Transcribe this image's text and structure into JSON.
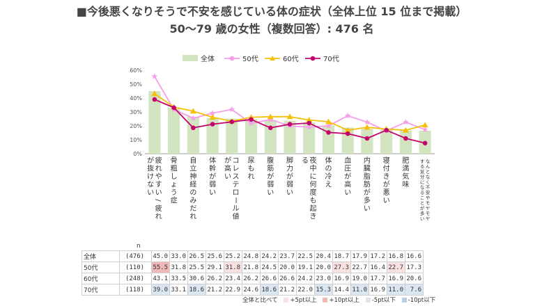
{
  "title_line1": "■今後悪くなりそうで不安を感じている体の症状（全体上位 15 位まで掲載）",
  "title_line2": "50〜79 歳の女性（複数回答）: 476 名",
  "colors": {
    "bar": "#d3e4c1",
    "s50": "#f59ee9",
    "s60": "#f5c00b",
    "s70": "#c3066d"
  },
  "chart_data": {
    "type": "bar",
    "ylim": [
      0,
      60
    ],
    "yticks": [
      "0%",
      "10%",
      "20%",
      "30%",
      "40%",
      "50%",
      "60%"
    ],
    "legend_position": "top",
    "categories": [
      "疲れやすい/疲れが抜けない",
      "骨粗しょう症",
      "自立神経のみだれ",
      "体幹が弱い",
      "コレステロール値が高い",
      "尿もれ",
      "腹筋が弱い",
      "脚力が弱い",
      "夜中に何度も起きる",
      "体の冷え",
      "血圧が高い",
      "内臓脂肪が多い",
      "寝付きが悪い",
      "肥満気味",
      "なんとなく不安やモヤモヤする気分になることが多い"
    ],
    "category_lines": [
      [
        "疲れやすい/疲れ",
        "が抜けない"
      ],
      [
        "骨粗しょう症"
      ],
      [
        "自立神経のみだれ"
      ],
      [
        "体幹が弱い"
      ],
      [
        "コレステロール値",
        "が高い"
      ],
      [
        "尿もれ"
      ],
      [
        "腹筋が弱い"
      ],
      [
        "脚力が弱い"
      ],
      [
        "夜中に何度も起き",
        "る"
      ],
      [
        "体の冷え"
      ],
      [
        "血圧が高い"
      ],
      [
        "内臓脂肪が多い"
      ],
      [
        "寝付きが悪い"
      ],
      [
        "肥満気味"
      ],
      [
        "なんとなく不安やモヤモヤ",
        "する気分になることが多い"
      ]
    ],
    "series": [
      {
        "name": "全体",
        "type": "bar",
        "values": [
          45.0,
          33.0,
          26.5,
          25.6,
          25.2,
          24.8,
          24.2,
          23.7,
          22.5,
          20.4,
          18.7,
          17.9,
          17.2,
          16.8,
          16.6
        ]
      },
      {
        "name": "50代",
        "type": "line",
        "values": [
          55.5,
          31.8,
          25.5,
          29.1,
          31.8,
          21.8,
          24.5,
          20.0,
          19.1,
          20.0,
          27.3,
          22.7,
          16.4,
          22.7,
          17.3
        ]
      },
      {
        "name": "60代",
        "type": "line",
        "values": [
          43.1,
          33.5,
          30.6,
          26.2,
          23.4,
          26.2,
          26.6,
          26.6,
          24.2,
          23.0,
          16.9,
          19.0,
          17.7,
          16.9,
          20.6
        ]
      },
      {
        "name": "70代",
        "type": "line",
        "values": [
          39.0,
          33.1,
          18.6,
          21.2,
          22.9,
          24.6,
          18.6,
          21.2,
          22.0,
          15.3,
          14.4,
          11.0,
          16.9,
          11.0,
          7.6
        ]
      }
    ]
  },
  "table": {
    "n_header": "n",
    "rows": [
      {
        "label": "全体",
        "n": "(476)",
        "values": [
          "45.0",
          "33.0",
          "26.5",
          "25.6",
          "25.2",
          "24.8",
          "24.2",
          "23.7",
          "22.5",
          "20.4",
          "18.7",
          "17.9",
          "17.2",
          "16.8",
          "16.6"
        ],
        "marks": [
          "",
          "",
          "",
          "",
          "",
          "",
          "",
          "",
          "",
          "",
          "",
          "",
          "",
          "",
          ""
        ]
      },
      {
        "label": "50代",
        "n": "(110)",
        "values": [
          "55.5",
          "31.8",
          "25.5",
          "29.1",
          "31.8",
          "21.8",
          "24.5",
          "20.0",
          "19.1",
          "20.0",
          "27.3",
          "22.7",
          "16.4",
          "22.7",
          "17.3"
        ],
        "marks": [
          "p10",
          "",
          "",
          "",
          "p5",
          "",
          "",
          "",
          "",
          "",
          "p5",
          "",
          "",
          "p5",
          ""
        ]
      },
      {
        "label": "60代",
        "n": "(248)",
        "values": [
          "43.1",
          "33.5",
          "30.6",
          "26.2",
          "23.4",
          "26.2",
          "26.6",
          "26.6",
          "24.2",
          "23.0",
          "16.9",
          "19.0",
          "17.7",
          "16.9",
          "20.6"
        ],
        "marks": [
          "",
          "",
          "",
          "",
          "",
          "",
          "",
          "",
          "",
          "",
          "",
          "",
          "",
          "",
          ""
        ]
      },
      {
        "label": "70代",
        "n": "(118)",
        "values": [
          "39.0",
          "33.1",
          "18.6",
          "21.2",
          "22.9",
          "24.6",
          "18.6",
          "21.2",
          "22.0",
          "15.3",
          "14.4",
          "11.0",
          "16.9",
          "11.0",
          "7.6"
        ],
        "marks": [
          "m5",
          "",
          "m5",
          "",
          "",
          "",
          "m5",
          "",
          "",
          "m5",
          "",
          "m5",
          "",
          "m5",
          "m5"
        ]
      }
    ]
  },
  "diff_legend": {
    "lead": "全体と比べて",
    "items": [
      {
        "label": "+5pt以上",
        "color": "#f9e1e1"
      },
      {
        "label": "+10pt以上",
        "color": "#f0b8b8"
      },
      {
        "label": "-5pt以下",
        "color": "#dbe6f3"
      },
      {
        "label": "-10pt以下",
        "color": "#b9cde8"
      }
    ]
  }
}
